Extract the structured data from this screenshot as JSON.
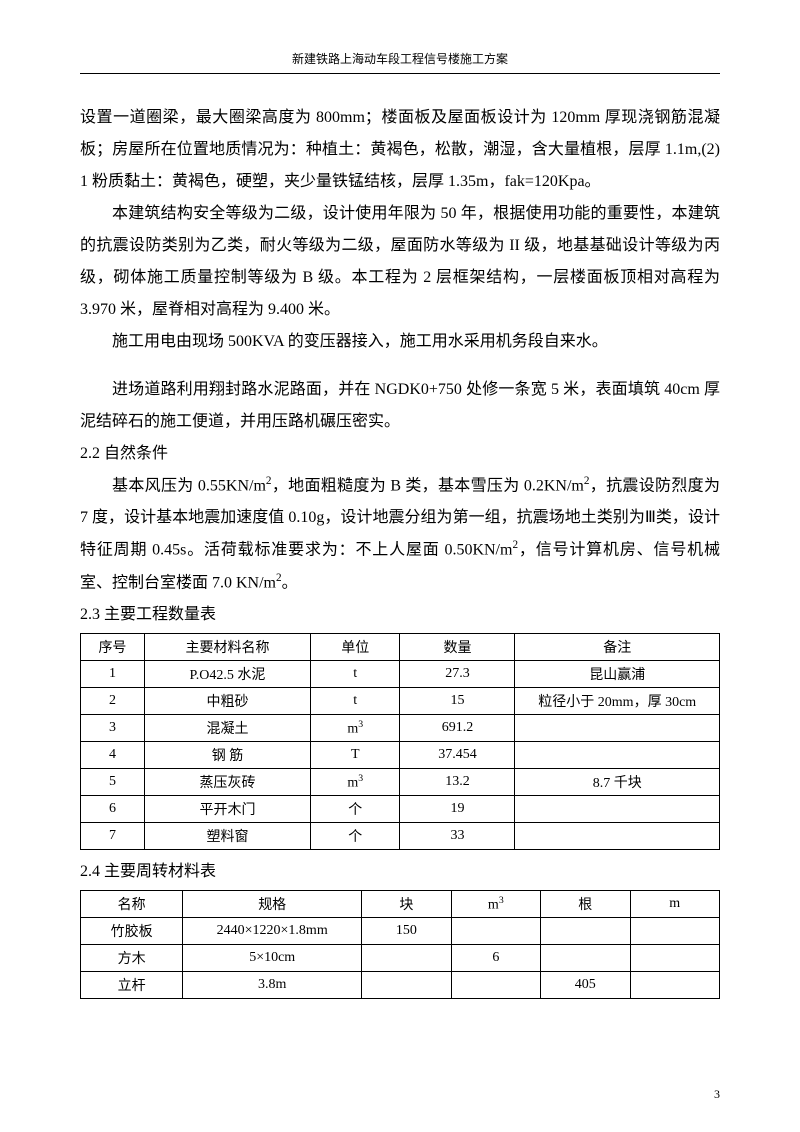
{
  "header": {
    "title": "新建铁路上海动车段工程信号楼施工方案"
  },
  "paragraphs": {
    "p1": "设置一道圈梁，最大圈梁高度为 800mm；楼面板及屋面板设计为 120mm 厚现浇钢筋混凝板；房屋所在位置地质情况为：种植土：黄褐色，松散，潮湿，含大量植根，层厚 1.1m,(2) 1 粉质黏土：黄褐色，硬塑，夹少量铁锰结核，层厚 1.35m，fak=120Kpa。",
    "p2": "本建筑结构安全等级为二级，设计使用年限为 50 年，根据使用功能的重要性，本建筑的抗震设防类别为乙类，耐火等级为二级，屋面防水等级为 II 级，地基基础设计等级为丙级，砌体施工质量控制等级为 B 级。本工程为 2 层框架结构，一层楼面板顶相对高程为 3.970 米，屋脊相对高程为 9.400 米。",
    "p3": "施工用电由现场 500KVA 的变压器接入，施工用水采用机务段自来水。",
    "p4": "进场道路利用翔封路水泥路面，并在 NGDK0+750 处修一条宽 5 米，表面填筑 40cm 厚泥结碎石的施工便道，并用压路机碾压密实。",
    "s22": "2.2 自然条件",
    "p5a": "基本风压为 0.55KN/m",
    "p5b": "，地面粗糙度为 B 类，基本雪压为 0.2KN/m",
    "p5c": "，抗震设防烈度为 7 度，设计基本地震加速度值 0.10g，设计地震分组为第一组，抗震场地土类别为Ⅲ类，设计特征周期 0.45s。活荷载标准要求为：不上人屋面 0.50KN/m",
    "p5d": "，信号计算机房、信号机械室、控制台室楼面 7.0 KN/m",
    "p5e": "。",
    "s23": "2.3 主要工程数量表",
    "s24": "2.4 主要周转材料表"
  },
  "sup2": "2",
  "sup3": "3",
  "table1": {
    "headers": [
      "序号",
      "主要材料名称",
      "单位",
      "数量",
      "备注"
    ],
    "rows": [
      {
        "idx": "1",
        "name": "P.O42.5 水泥",
        "unit": "t",
        "qty": "27.3",
        "note": "昆山赢浦"
      },
      {
        "idx": "2",
        "name": "中粗砂",
        "unit": "t",
        "qty": "15",
        "note": "粒径小于 20mm，厚 30cm"
      },
      {
        "idx": "3",
        "name": "混凝土",
        "unit": "m",
        "unit_sup": "3",
        "qty": "691.2",
        "note": ""
      },
      {
        "idx": "4",
        "name": "钢  筋",
        "unit": "T",
        "qty": "37.454",
        "note": ""
      },
      {
        "idx": "5",
        "name": "蒸压灰砖",
        "unit": "m",
        "unit_sup": "3",
        "qty": "13.2",
        "note": "8.7 千块"
      },
      {
        "idx": "6",
        "name": "平开木门",
        "unit": "个",
        "qty": "19",
        "note": ""
      },
      {
        "idx": "7",
        "name": "塑料窗",
        "unit": "个",
        "qty": "33",
        "note": ""
      }
    ]
  },
  "table2": {
    "headers": {
      "name": "名称",
      "spec": "规格",
      "c1": "块",
      "c2": "m",
      "c2_sup": "3",
      "c3": "根",
      "c4": "m"
    },
    "rows": [
      {
        "name": "竹胶板",
        "spec": "2440×1220×1.8mm",
        "c1": "150",
        "c2": "",
        "c3": "",
        "c4": ""
      },
      {
        "name": "方木",
        "spec": "5×10cm",
        "c1": "",
        "c2": "6",
        "c3": "",
        "c4": ""
      },
      {
        "name": "立杆",
        "spec": "3.8m",
        "c1": "",
        "c2": "",
        "c3": "405",
        "c4": ""
      }
    ]
  },
  "page_number": "3"
}
